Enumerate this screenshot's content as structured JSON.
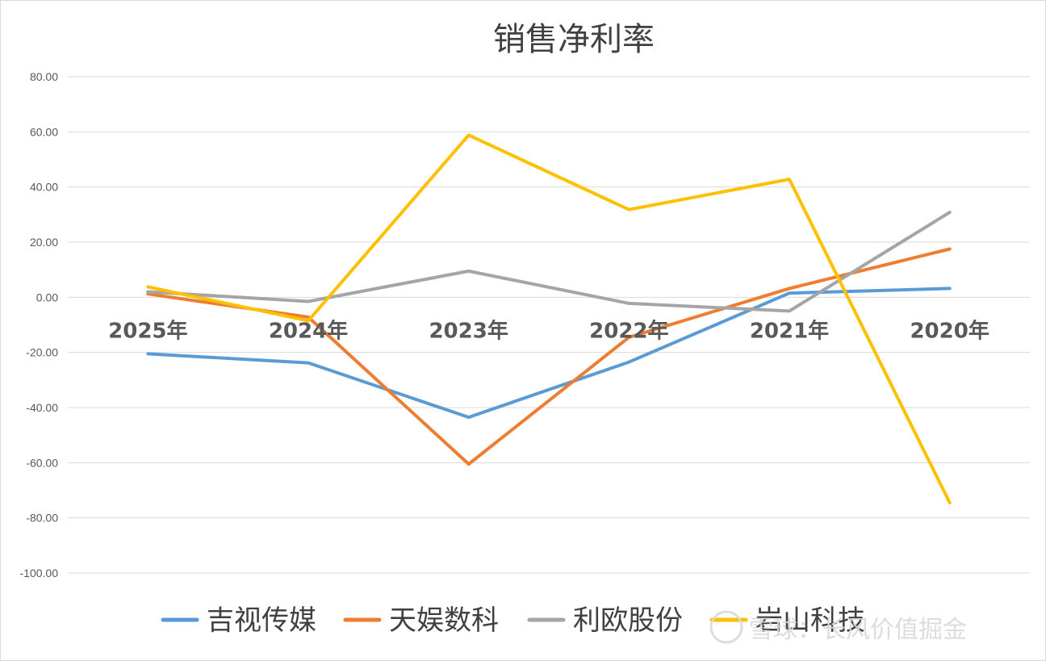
{
  "chart_data": {
    "type": "line",
    "title": "销售净利率",
    "categories": [
      "2025年",
      "2024年",
      "2023年",
      "2022年",
      "2021年",
      "2020年"
    ],
    "ylim": [
      -100,
      80
    ],
    "yticks": [
      80,
      60,
      40,
      20,
      0,
      -20,
      -40,
      -60,
      -80,
      -100
    ],
    "ytick_labels": [
      "80.00",
      "60.00",
      "40.00",
      "20.00",
      "0.00",
      "-20.00",
      "-40.00",
      "-60.00",
      "-80.00",
      "-100.00"
    ],
    "grid": true,
    "legend_position": "bottom",
    "series": [
      {
        "name": "吉视传媒",
        "color": "#5b9bd5",
        "values": [
          -20.5,
          -23.8,
          -43.5,
          -23.5,
          1.5,
          3.2
        ]
      },
      {
        "name": "天娱数科",
        "color": "#ed7d31",
        "values": [
          1.2,
          -7.2,
          -60.5,
          -14.5,
          3.2,
          17.5
        ]
      },
      {
        "name": "利欧股份",
        "color": "#a5a5a5",
        "values": [
          2.0,
          -1.5,
          9.5,
          -2.2,
          -5.0,
          30.8
        ]
      },
      {
        "name": "岩山科技",
        "color": "#ffc000",
        "values": [
          3.8,
          -8.5,
          58.8,
          31.8,
          42.8,
          -74.5
        ]
      }
    ]
  },
  "watermark": {
    "text": "雪球：长风价值掘金"
  }
}
